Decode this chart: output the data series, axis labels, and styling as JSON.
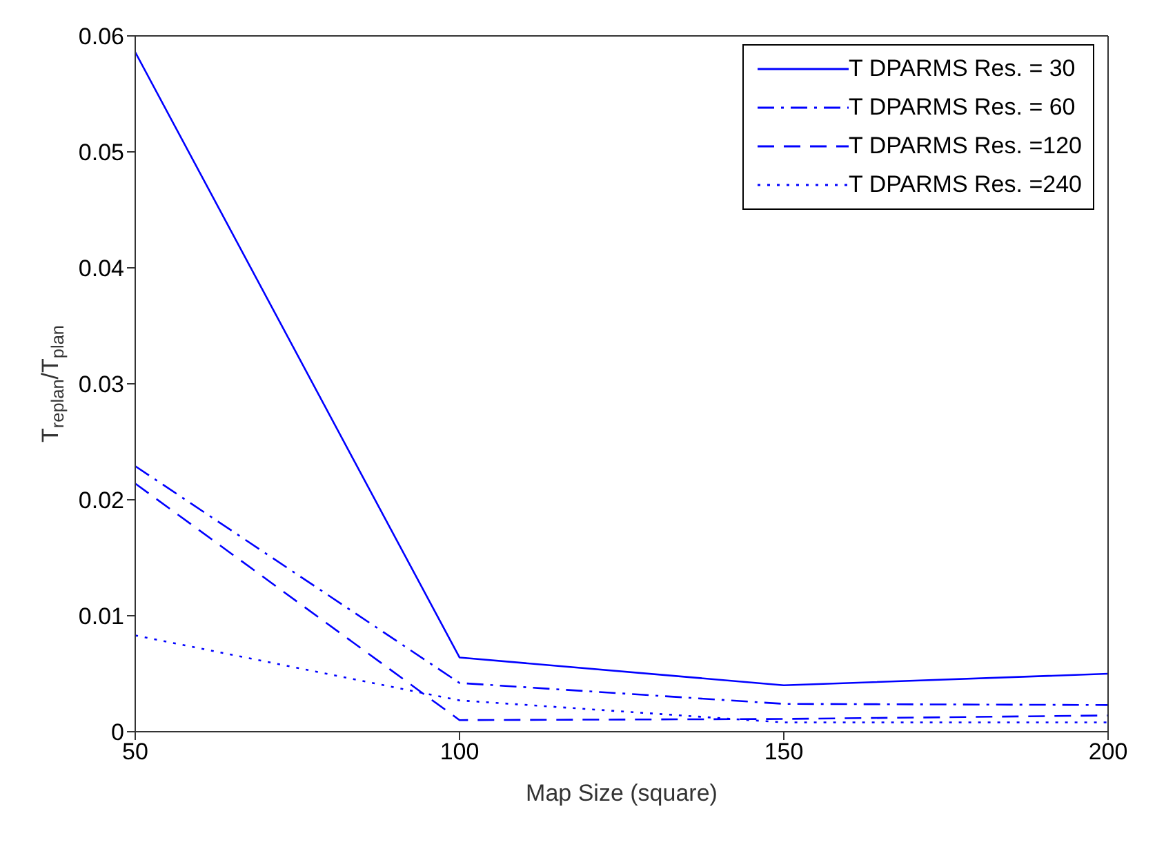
{
  "chart_data": {
    "type": "line",
    "xlabel": "Map Size (square)",
    "ylabel": "T$_{replan}$/T$_{plan}$",
    "x": [
      50,
      100,
      150,
      200
    ],
    "xlim": [
      50,
      200
    ],
    "xticks": [
      50,
      100,
      150,
      200
    ],
    "ylim": [
      0,
      0.06
    ],
    "yticks": [
      0,
      0.01,
      0.02,
      0.03,
      0.04,
      0.05,
      0.06
    ],
    "legend": "top right",
    "marker": "none",
    "series": [
      {
        "name": "T DPARMS Res. = 30",
        "color": "#0000ff",
        "line_style": "solid",
        "values": [
          0.0586,
          0.0064,
          0.004,
          0.005
        ]
      },
      {
        "name": "T DPARMS Res. = 60",
        "color": "#0000ff",
        "line_style": "dashdot",
        "values": [
          0.0229,
          0.0042,
          0.0024,
          0.0023
        ]
      },
      {
        "name": "T DPARMS Res. =120",
        "color": "#0000ff",
        "line_style": "dashed",
        "values": [
          0.0214,
          0.001,
          0.0011,
          0.0014
        ]
      },
      {
        "name": "T DPARMS Res. =240",
        "color": "#0000ff",
        "line_style": "dotted",
        "values": [
          0.0083,
          0.0027,
          0.0008,
          0.0008
        ]
      }
    ]
  }
}
